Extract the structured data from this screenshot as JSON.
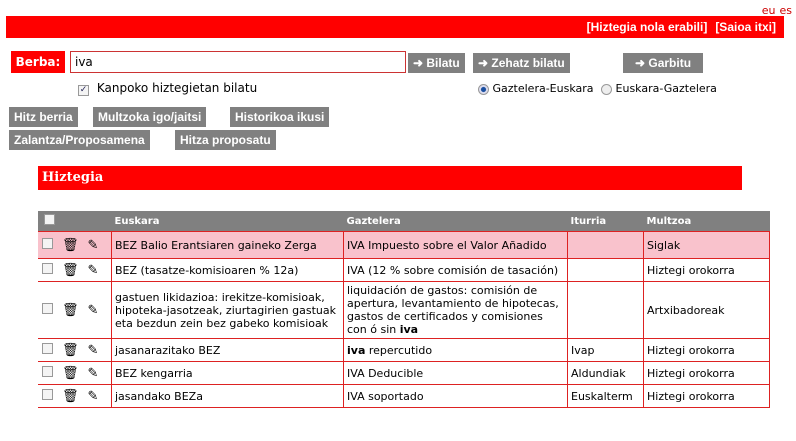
{
  "lang": [
    "eu",
    "es"
  ],
  "topbar": {
    "help": "[Hiztegia nola erabili]",
    "logout": "[Saioa itxi]"
  },
  "search": {
    "label": "Berba:",
    "value": "iva",
    "search_btn": "Bilatu",
    "exact_btn": "Zehatz bilatu",
    "clear_btn": "Garbitu",
    "external_label": "Kanpoko hiztegietan bilatu",
    "external_checked": true,
    "directions": [
      {
        "label": "Gaztelera-Euskara",
        "selected": true
      },
      {
        "label": "Euskara-Gaztelera",
        "selected": false
      }
    ]
  },
  "actions": [
    "Hitz berria",
    "Multzoka igo/jaitsi",
    "Historikoa ikusi",
    "Zalantza/Proposamena",
    "Hitza proposatu"
  ],
  "section_title": "Hiztegia",
  "table": {
    "headers": [
      "Euskara",
      "Gaztelera",
      "Iturria",
      "Multzoa"
    ],
    "rows": [
      {
        "eu": "BEZ Balio Erantsiaren gaineko Zerga",
        "es": "IVA Impuesto sobre el Valor Añadido",
        "src": "",
        "group": "Siglak",
        "highlight": true
      },
      {
        "eu": "BEZ (tasatze-komisioaren % 12a)",
        "es": "IVA (12 % sobre comisión de tasación)",
        "src": "",
        "group": "Hiztegi orokorra"
      },
      {
        "eu": "gastuen likidazioa: irekitze-komisioak, hipoteka-jasotzeak, ziurtagirien gastuak eta bezdun zein bez gabeko komisioak",
        "es_pre": "liquidación de gastos: comisión de apertura, levantamiento de hipotecas, gastos de certificados y comisiones con ó sin ",
        "es_bold": "iva",
        "src": "",
        "group": "Artxibadoreak"
      },
      {
        "eu": "jasanarazitako BEZ",
        "es_bold": "iva",
        "es_post": " repercutido",
        "src": "Ivap",
        "group": "Hiztegi orokorra"
      },
      {
        "eu": "BEZ kengarria",
        "es": "IVA Deducible",
        "src": "Aldundiak",
        "group": "Hiztegi orokorra"
      },
      {
        "eu": "jasandako BEZa",
        "es": "IVA soportado",
        "src": "Euskalterm",
        "group": "Hiztegi orokorra"
      }
    ]
  },
  "colors": {
    "accent": "#ff0000",
    "button": "#808080",
    "highlight_row": "#f9c2cc"
  }
}
